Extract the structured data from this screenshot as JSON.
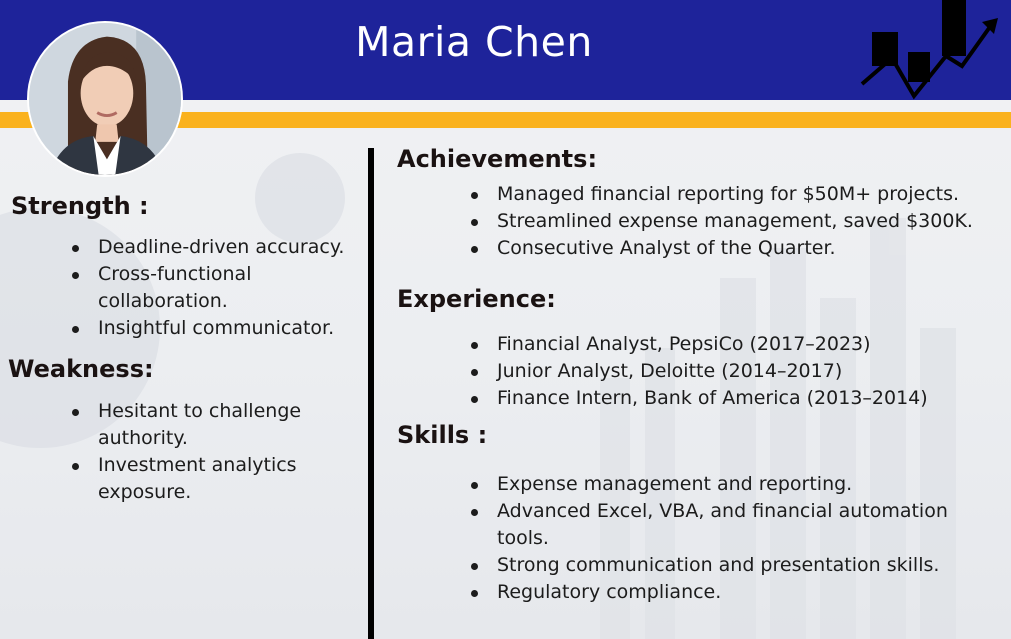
{
  "profile": {
    "name": "Maria Chen"
  },
  "left": {
    "strength": {
      "heading": "Strength :",
      "items": [
        "Deadline-driven accuracy.",
        "Cross-functional collaboration.",
        "Insightful communicator."
      ]
    },
    "weakness": {
      "heading": "Weakness:",
      "items": [
        "Hesitant to challenge authority.",
        "Investment analytics exposure."
      ]
    }
  },
  "right": {
    "achievements": {
      "heading": "Achievements:",
      "items": [
        "Managed financial reporting for $50M+ projects.",
        "Streamlined expense management, saved $300K.",
        "Consecutive Analyst of the Quarter."
      ]
    },
    "experience": {
      "heading": "Experience:",
      "items": [
        "Financial Analyst, PepsiCo (2017–2023)",
        "Junior Analyst, Deloitte (2014–2017)",
        "Finance Intern, Bank of America (2013–2014)"
      ]
    },
    "skills": {
      "heading": "Skills :",
      "items": [
        "Expense management and reporting.",
        "Advanced Excel, VBA, and financial automation tools.",
        "Strong communication and presentation skills.",
        "Regulatory compliance."
      ]
    }
  },
  "colors": {
    "header": "#1e239a",
    "band": "#fab21e",
    "divider": "#000000"
  },
  "icons": {
    "logo": "bar-chart-trend-icon",
    "photo": "profile-photo"
  }
}
